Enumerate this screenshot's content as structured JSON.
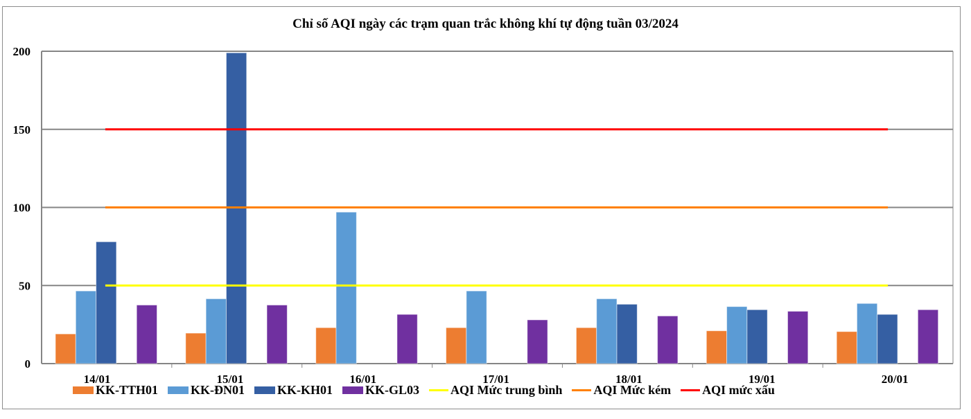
{
  "chart_data": {
    "type": "bar",
    "title": "Chỉ số AQI ngày các trạm quan trắc không khí tự động tuần 03/2024",
    "categories": [
      "14/01",
      "15/01",
      "16/01",
      "17/01",
      "18/01",
      "19/01",
      "20/01"
    ],
    "ylim": [
      0,
      200
    ],
    "yticks": [
      0,
      50,
      100,
      150,
      200
    ],
    "grid": true,
    "legend": "bottom",
    "series": [
      {
        "name": "KK-TTH01",
        "color": "#ed7d31",
        "values": [
          19,
          19.5,
          23,
          23,
          23,
          21,
          20.5
        ]
      },
      {
        "name": "KK-ĐN01",
        "color": "#5b9bd5",
        "values": [
          46.5,
          41.5,
          97,
          46.5,
          41.5,
          36.5,
          38.5
        ]
      },
      {
        "name": "KK-KH01",
        "color": "#355fa3",
        "values": [
          78,
          199,
          null,
          null,
          38,
          34.5,
          31.5
        ]
      },
      {
        "name": "KK-GL03",
        "color": "#7030a0",
        "values": [
          37.5,
          37.5,
          31.5,
          28,
          30.5,
          33.5,
          34.5
        ]
      }
    ],
    "reference_lines": [
      {
        "name": "AQI Mức trung bình",
        "color": "#ffff00",
        "value": 50
      },
      {
        "name": "AQI Mức kém",
        "color": "#ff8000",
        "value": 100
      },
      {
        "name": "AQI mức xấu",
        "color": "#ff0000",
        "value": 150
      }
    ]
  }
}
